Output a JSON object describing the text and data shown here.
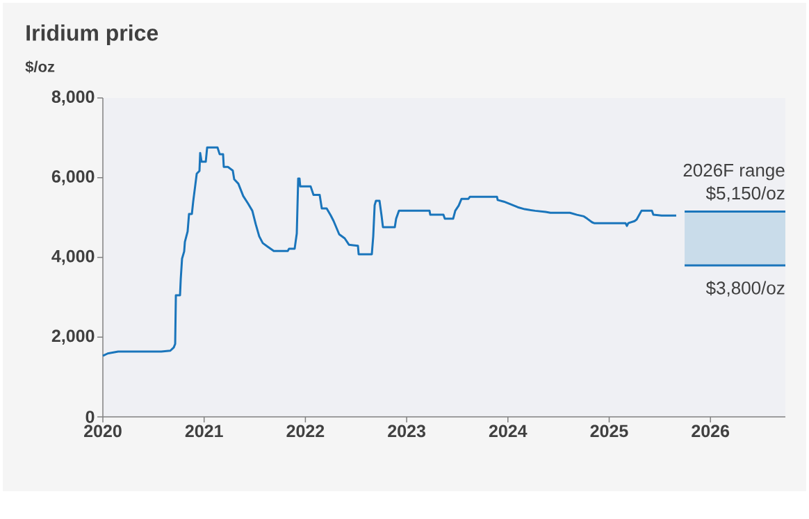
{
  "chart_data": {
    "type": "line",
    "title": "Iridium price",
    "ylabel": "$/oz",
    "xlim": [
      2020,
      2026.74
    ],
    "xticks": [
      2020,
      2021,
      2022,
      2023,
      2024,
      2025,
      2026
    ],
    "ylim": [
      0,
      8000
    ],
    "yticks": [
      0,
      {
        "value": 2000,
        "label": "2,000"
      },
      {
        "value": 4000,
        "label": "4,000"
      },
      {
        "value": 6000,
        "label": "6,000"
      },
      {
        "value": 8000,
        "label": "8,000"
      }
    ],
    "grid": false,
    "series": [
      {
        "color": "#1a75bb",
        "x": [
          2020.0,
          2020.048,
          2020.151,
          2020.577,
          2020.666,
          2020.7,
          2020.714,
          2020.721,
          2020.762,
          2020.769,
          2020.782,
          2020.803,
          2020.81,
          2020.837,
          2020.851,
          2020.879,
          2020.892,
          2020.927,
          2020.954,
          2020.961,
          2020.975,
          2021.016,
          2021.03,
          2021.132,
          2021.153,
          2021.187,
          2021.194,
          2021.235,
          2021.283,
          2021.297,
          2021.338,
          2021.386,
          2021.434,
          2021.476,
          2021.51,
          2021.544,
          2021.579,
          2021.627,
          2021.688,
          2021.826,
          2021.839,
          2021.894,
          2021.915,
          2021.929,
          2021.942,
          2021.949,
          2022.052,
          2022.08,
          2022.141,
          2022.162,
          2022.21,
          2022.251,
          2022.279,
          2022.334,
          2022.388,
          2022.43,
          2022.519,
          2022.526,
          2022.656,
          2022.67,
          2022.684,
          2022.697,
          2022.732,
          2022.752,
          2022.766,
          2022.883,
          2022.896,
          2022.924,
          2023.226,
          2023.233,
          2023.363,
          2023.377,
          2023.459,
          2023.48,
          2023.514,
          2023.542,
          2023.61,
          2023.624,
          2023.892,
          2023.899,
          2023.96,
          2024.029,
          2024.097,
          2024.166,
          2024.269,
          2024.372,
          2024.42,
          2024.612,
          2024.681,
          2024.75,
          2024.784,
          2024.832,
          2024.852,
          2025.161,
          2025.175,
          2025.189,
          2025.25,
          2025.271,
          2025.319,
          2025.422,
          2025.436,
          2025.518,
          2025.662
        ],
        "values": [
          1530,
          1590,
          1640,
          1640,
          1660,
          1740,
          1830,
          3050,
          3050,
          3450,
          3970,
          4150,
          4390,
          4650,
          5090,
          5090,
          5400,
          6100,
          6170,
          6620,
          6400,
          6400,
          6760,
          6760,
          6590,
          6590,
          6270,
          6270,
          6180,
          5960,
          5850,
          5540,
          5350,
          5170,
          4830,
          4530,
          4360,
          4270,
          4160,
          4160,
          4220,
          4220,
          4600,
          5980,
          5980,
          5780,
          5780,
          5570,
          5570,
          5230,
          5230,
          5050,
          4910,
          4580,
          4480,
          4320,
          4290,
          4080,
          4080,
          4530,
          5310,
          5420,
          5420,
          5050,
          4760,
          4760,
          4970,
          5170,
          5170,
          5070,
          5070,
          4970,
          4970,
          5170,
          5300,
          5470,
          5470,
          5520,
          5520,
          5440,
          5400,
          5330,
          5260,
          5210,
          5170,
          5140,
          5120,
          5120,
          5070,
          5030,
          4970,
          4880,
          4860,
          4860,
          4790,
          4860,
          4910,
          4950,
          5170,
          5170,
          5070,
          5050,
          5050
        ]
      },
      {
        "color": "#1a75bb",
        "x": [
          2025.745,
          2026.74
        ],
        "values": [
          5150,
          5150
        ]
      },
      {
        "color": "#1a75bb",
        "x": [
          2025.745,
          2026.74
        ],
        "values": [
          3800,
          3800
        ]
      }
    ],
    "bands": [
      {
        "axis": "y",
        "from": 3800,
        "to": 5150,
        "color": "#c9dcea"
      }
    ],
    "annotations": [
      "2026F range",
      {
        "text": "$5,150/oz",
        "x": 2026.74,
        "y": 5150
      },
      {
        "text": "$3,800/oz",
        "x": 2026.74,
        "y": 3800
      }
    ]
  }
}
